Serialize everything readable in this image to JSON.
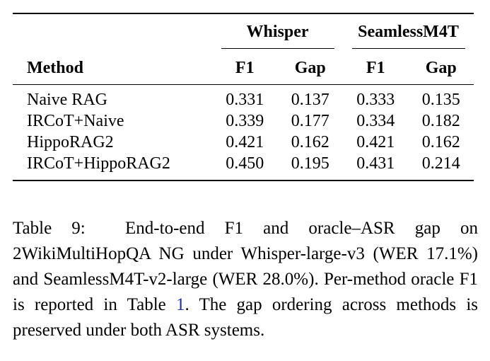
{
  "table": {
    "groups": [
      "Whisper",
      "SeamlessM4T"
    ],
    "method_header": "Method",
    "sub_headers": [
      "F1",
      "Gap",
      "F1",
      "Gap"
    ],
    "rows": [
      {
        "method": "Naive RAG",
        "cells": [
          "0.331",
          "0.137",
          "0.333",
          "0.135"
        ]
      },
      {
        "method": "IRCoT+Naive",
        "cells": [
          "0.339",
          "0.177",
          "0.334",
          "0.182"
        ]
      },
      {
        "method": "HippoRAG2",
        "cells": [
          "0.421",
          "0.162",
          "0.421",
          "0.162"
        ]
      },
      {
        "method": "IRCoT+HippoRAG2",
        "cells": [
          "0.450",
          "0.195",
          "0.431",
          "0.214"
        ]
      }
    ]
  },
  "caption": {
    "label": "Table 9:",
    "text_before_ref": "End-to-end F1 and oracle–ASR gap on 2WikiMultiHopQA NG under Whisper-large-v3 (WER 17.1%) and SeamlessM4T-v2-large (WER 28.0%). Per-method oracle F1 is reported in Table",
    "ref": "1",
    "text_after_ref": ". The gap ordering across methods is preserved under both ASR systems."
  }
}
